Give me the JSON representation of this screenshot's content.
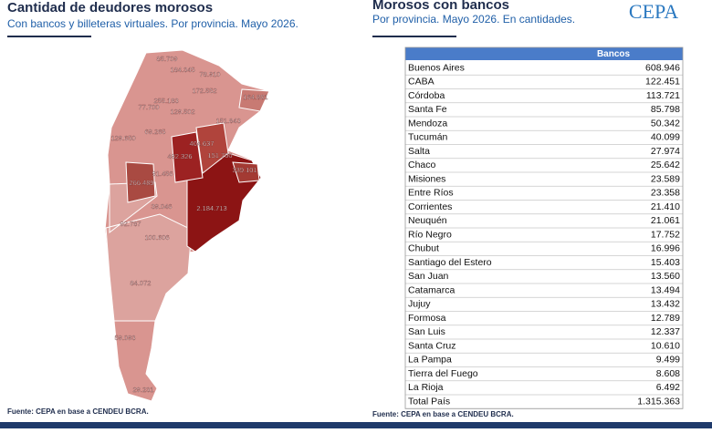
{
  "left": {
    "title": "Cantidad de deudores morosos",
    "subtitle": "Con bancos y billeteras virtuales. Por provincia. Mayo 2026.",
    "map_labels": [
      "85.709",
      "184.345",
      "78.910",
      "172.552",
      "164.881",
      "255.183",
      "77.700",
      "129.502",
      "151.843",
      "69.265",
      "129.650",
      "404.637",
      "492.326",
      "151.700",
      "339.101",
      "91.456",
      "266.489",
      "2.184.713",
      "39.046",
      "92.787",
      "100.606",
      "84.072",
      "59.093",
      "29.231"
    ],
    "source": "Fuente: CEPA en base a CENDEU BCRA."
  },
  "right": {
    "title": "Morosos con bancos",
    "subtitle": "Por provincia. Mayo 2026. En cantidades.",
    "logo": "CEPA",
    "table": {
      "header": [
        "",
        "Bancos"
      ],
      "rows": [
        [
          "Buenos Aires",
          "608.946"
        ],
        [
          "CABA",
          "122.451"
        ],
        [
          "Córdoba",
          "113.721"
        ],
        [
          "Santa Fe",
          "85.798"
        ],
        [
          "Mendoza",
          "50.342"
        ],
        [
          "Tucumán",
          "40.099"
        ],
        [
          "Salta",
          "27.974"
        ],
        [
          "Chaco",
          "25.642"
        ],
        [
          "Misiones",
          "23.589"
        ],
        [
          "Entre Ríos",
          "23.358"
        ],
        [
          "Corrientes",
          "21.410"
        ],
        [
          "Neuquén",
          "21.061"
        ],
        [
          "Río Negro",
          "17.752"
        ],
        [
          "Chubut",
          "16.996"
        ],
        [
          "Santiago del Estero",
          "15.403"
        ],
        [
          "San Juan",
          "13.560"
        ],
        [
          "Catamarca",
          "13.494"
        ],
        [
          "Jujuy",
          "13.432"
        ],
        [
          "Formosa",
          "12.789"
        ],
        [
          "San Luis",
          "12.337"
        ],
        [
          "Santa Cruz",
          "10.610"
        ],
        [
          "La Pampa",
          "9.499"
        ],
        [
          "Tierra del Fuego",
          "8.608"
        ],
        [
          "La Rioja",
          "6.492"
        ],
        [
          "Total País",
          "1.315.363"
        ]
      ]
    },
    "source": "Fuente: CEPA en base a CENDEU BCRA."
  }
}
